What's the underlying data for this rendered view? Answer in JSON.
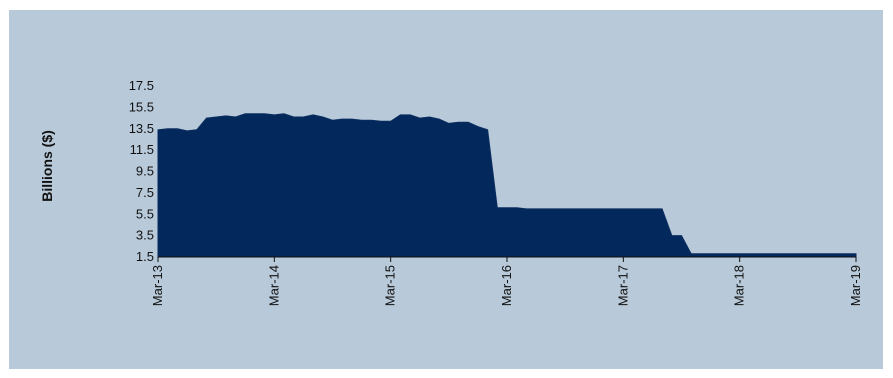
{
  "chart_data": {
    "type": "area",
    "title": "",
    "xlabel": "",
    "ylabel": "Billions ($)",
    "ylim": [
      1.5,
      17.5
    ],
    "yticks": [
      "1.5",
      "3.5",
      "5.5",
      "7.5",
      "9.5",
      "11.5",
      "13.5",
      "15.5",
      "17.5"
    ],
    "xticks": [
      "Mar-13",
      "Mar-14",
      "Mar-15",
      "Mar-16",
      "Mar-17",
      "Mar-18",
      "Mar-19"
    ],
    "grid": false,
    "legend": "none",
    "x_months_from_first_tick": [
      0,
      1,
      2,
      3,
      4,
      5,
      6,
      7,
      8,
      9,
      10,
      11,
      12,
      13,
      14,
      15,
      16,
      17,
      18,
      19,
      20,
      21,
      22,
      23,
      24,
      25,
      26,
      27,
      28,
      29,
      30,
      31,
      32,
      33,
      34,
      35,
      36,
      37,
      38,
      39,
      40,
      41,
      42,
      43,
      44,
      45,
      46,
      47,
      48,
      49,
      50,
      51,
      52,
      53,
      54,
      55,
      56,
      57,
      58,
      59,
      60,
      61,
      62,
      63,
      64,
      65,
      66,
      67,
      68,
      69,
      70,
      71,
      72
    ],
    "series": [
      {
        "values": [
          13.4,
          13.5,
          13.5,
          13.3,
          13.4,
          14.5,
          14.6,
          14.7,
          14.6,
          14.9,
          14.9,
          14.9,
          14.8,
          14.9,
          14.6,
          14.6,
          14.8,
          14.6,
          14.3,
          14.4,
          14.4,
          14.3,
          14.3,
          14.2,
          14.2,
          14.8,
          14.8,
          14.5,
          14.6,
          14.4,
          14.0,
          14.1,
          14.1,
          13.7,
          13.4,
          6.1,
          6.1,
          6.1,
          6.0,
          6.0,
          6.0,
          6.0,
          6.0,
          6.0,
          6.0,
          6.0,
          6.0,
          6.0,
          6.0,
          6.0,
          6.0,
          6.0,
          6.0,
          3.5,
          3.5,
          1.8,
          1.8,
          1.8,
          1.8,
          1.8,
          1.8,
          1.8,
          1.8,
          1.8,
          1.8,
          1.8,
          1.8,
          1.8,
          1.8,
          1.8,
          1.8,
          1.8,
          1.8
        ],
        "color": "#03285c"
      }
    ]
  },
  "colors": {
    "background": "#b8c9d9",
    "area_fill": "#03285c",
    "area_stroke": "#0a2d5e",
    "axis": "#111111"
  }
}
